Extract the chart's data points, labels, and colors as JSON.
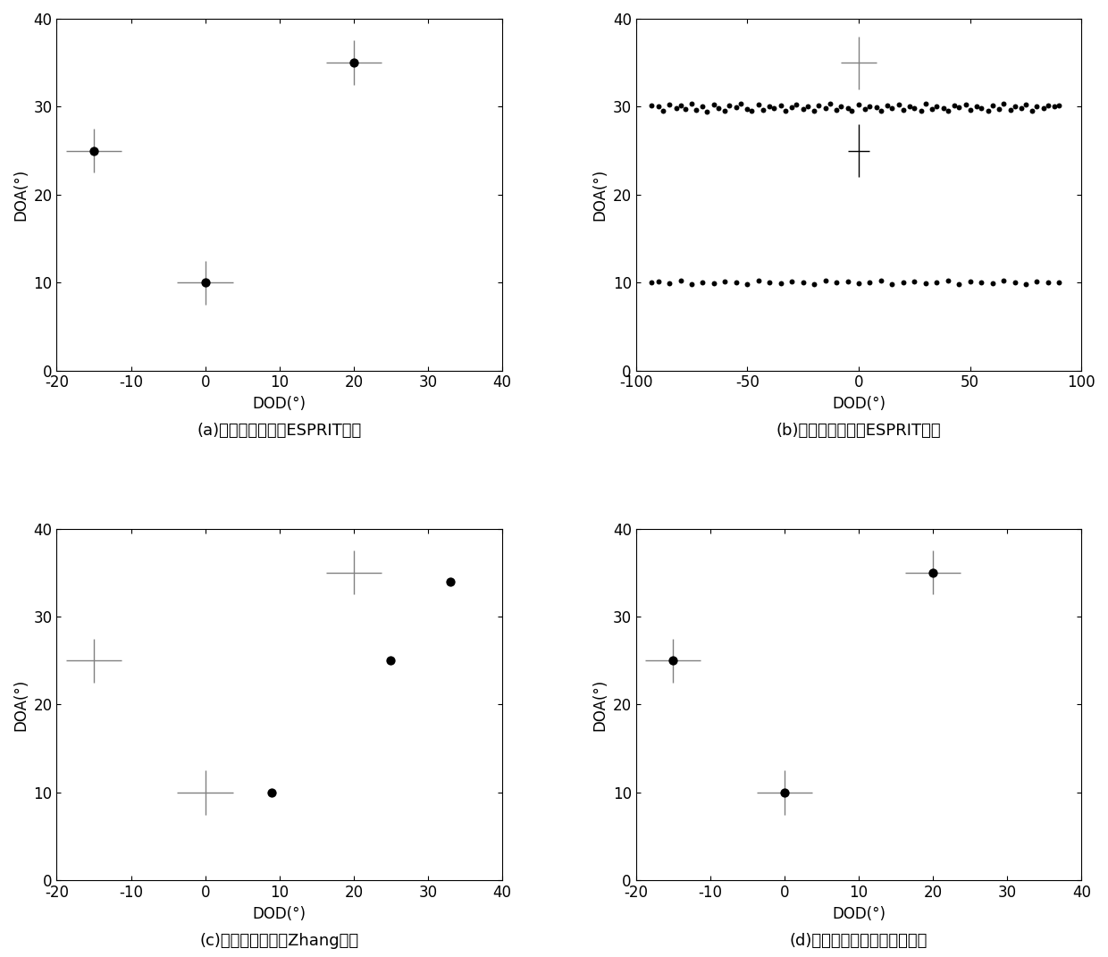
{
  "subplots": [
    {
      "title": "(a)阵元正常时采用ESPRIT算法",
      "xlabel": "DOD(°)",
      "ylabel": "DOA(°)",
      "xlim": [
        -20,
        40
      ],
      "ylim": [
        0,
        40
      ],
      "xticks": [
        -20,
        -10,
        0,
        10,
        20,
        30,
        40
      ],
      "yticks": [
        0,
        10,
        20,
        30,
        40
      ],
      "true_points": [
        [
          -15,
          25
        ],
        [
          0,
          10
        ],
        [
          20,
          35
        ]
      ],
      "est_points": [
        [
          -15,
          25
        ],
        [
          0,
          10
        ],
        [
          20,
          35
        ]
      ]
    },
    {
      "title": "(b)阵元故障时采用ESPRIT算法",
      "xlabel": "DOD(°)",
      "ylabel": "DOA(°)",
      "xlim": [
        -100,
        100
      ],
      "ylim": [
        0,
        40
      ],
      "xticks": [
        -100,
        -50,
        0,
        50,
        100
      ],
      "yticks": [
        0,
        10,
        20,
        30,
        40
      ],
      "true_points": [
        [
          0,
          35
        ],
        [
          0,
          25
        ]
      ],
      "scatter_doa30_x": [
        -93,
        -90,
        -88,
        -85,
        -82,
        -80,
        -78,
        -75,
        -73,
        -70,
        -68,
        -65,
        -63,
        -60,
        -58,
        -55,
        -53,
        -50,
        -48,
        -45,
        -43,
        -40,
        -38,
        -35,
        -33,
        -30,
        -28,
        -25,
        -23,
        -20,
        -18,
        -15,
        -13,
        -10,
        -8,
        -5,
        -3,
        0,
        3,
        5,
        8,
        10,
        13,
        15,
        18,
        20,
        23,
        25,
        28,
        30,
        33,
        35,
        38,
        40,
        43,
        45,
        48,
        50,
        53,
        55,
        58,
        60,
        63,
        65,
        68,
        70,
        73,
        75,
        78,
        80,
        83,
        85,
        88,
        90
      ],
      "scatter_doa30_y": [
        30.1,
        30,
        29.5,
        30.2,
        29.8,
        30.1,
        29.7,
        30.3,
        29.6,
        30.0,
        29.4,
        30.2,
        29.8,
        29.5,
        30.1,
        29.9,
        30.3,
        29.7,
        29.5,
        30.2,
        29.6,
        30.0,
        29.8,
        30.1,
        29.5,
        29.9,
        30.2,
        29.7,
        30.0,
        29.5,
        30.1,
        29.8,
        30.3,
        29.6,
        30.0,
        29.8,
        29.5,
        30.2,
        29.7,
        30.0,
        29.9,
        29.5,
        30.1,
        29.8,
        30.2,
        29.6,
        30.0,
        29.8,
        29.5,
        30.3,
        29.7,
        30.0,
        29.8,
        29.5,
        30.1,
        29.9,
        30.2,
        29.6,
        30.0,
        29.8,
        29.5,
        30.1,
        29.7,
        30.3,
        29.6,
        30.0,
        29.8,
        30.2,
        29.5,
        30.0,
        29.8,
        30.1,
        30.0,
        30.1
      ],
      "scatter_doa10_x": [
        -93,
        -90,
        -85,
        -80,
        -75,
        -70,
        -65,
        -60,
        -55,
        -50,
        -45,
        -40,
        -35,
        -30,
        -25,
        -20,
        -15,
        -10,
        -5,
        0,
        5,
        10,
        15,
        20,
        25,
        30,
        35,
        40,
        45,
        50,
        55,
        60,
        65,
        70,
        75,
        80,
        85,
        90
      ],
      "scatter_doa10_y": [
        10,
        10.1,
        9.9,
        10.2,
        9.8,
        10.0,
        9.9,
        10.1,
        10.0,
        9.8,
        10.2,
        10.0,
        9.9,
        10.1,
        10.0,
        9.8,
        10.2,
        10.0,
        10.1,
        9.9,
        10.0,
        10.2,
        9.8,
        10.0,
        10.1,
        9.9,
        10.0,
        10.2,
        9.8,
        10.1,
        10.0,
        9.9,
        10.2,
        10.0,
        9.8,
        10.1,
        10.0,
        10.0
      ]
    },
    {
      "title": "(c)阵元故障时采用Zhang方法",
      "xlabel": "DOD(°)",
      "ylabel": "DOA(°)",
      "xlim": [
        -20,
        40
      ],
      "ylim": [
        0,
        40
      ],
      "xticks": [
        -20,
        -10,
        0,
        10,
        20,
        30,
        40
      ],
      "yticks": [
        0,
        10,
        20,
        30,
        40
      ],
      "true_points": [
        [
          -15,
          25
        ],
        [
          0,
          10
        ],
        [
          20,
          35
        ]
      ],
      "est_points": [
        [
          9,
          10
        ],
        [
          25,
          25
        ],
        [
          33,
          34
        ]
      ]
    },
    {
      "title": "(d)阵元故障时采用本发明方法",
      "xlabel": "DOD(°)",
      "ylabel": "DOA(°)",
      "xlim": [
        -20,
        40
      ],
      "ylim": [
        0,
        40
      ],
      "xticks": [
        -20,
        -10,
        0,
        10,
        20,
        30,
        40
      ],
      "yticks": [
        0,
        10,
        20,
        30,
        40
      ],
      "true_points": [
        [
          -15,
          25
        ],
        [
          0,
          10
        ],
        [
          20,
          35
        ]
      ],
      "est_points": [
        [
          -15,
          25
        ],
        [
          0,
          10
        ],
        [
          20,
          35
        ]
      ]
    }
  ],
  "dot_size": 55,
  "label_fontsize": 12,
  "caption_fontsize": 13
}
